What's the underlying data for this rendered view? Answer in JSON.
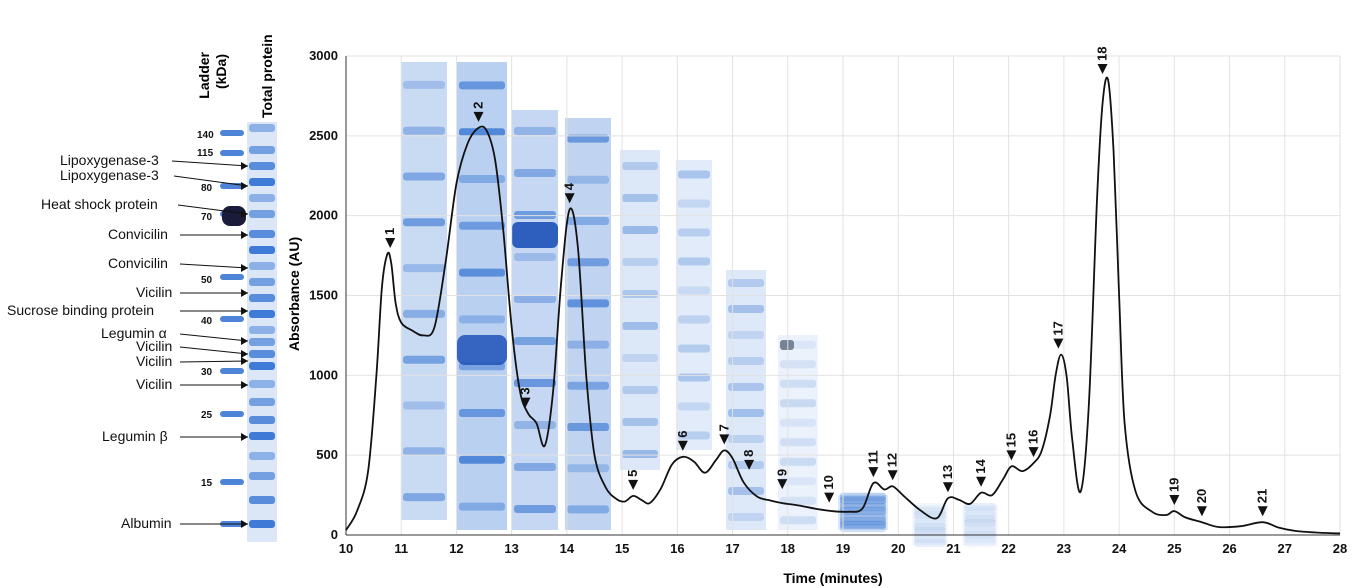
{
  "gel": {
    "ladder_header_line1": "Ladder",
    "ladder_header_line2": "(kDa)",
    "total_header": "Total protein",
    "ladder_marks": [
      "140",
      "115",
      "80",
      "70",
      "50",
      "40",
      "30",
      "25",
      "15"
    ],
    "protein_labels": [
      "Lipoxygenase-3",
      "Lipoxygenase-3",
      "Heat shock protein",
      "Convicilin",
      "Convicilin",
      "Vicilin",
      "Sucrose binding protein",
      "Legumin α",
      "Vicilin",
      "Vicilin",
      "Vicilin",
      "Legumin β",
      "Albumin"
    ],
    "band_color": "#2e6fd1"
  },
  "chart_data": {
    "type": "line",
    "xlabel": "Time (minutes)",
    "ylabel": "Absorbance (AU)",
    "xlim": [
      10,
      28
    ],
    "ylim": [
      0,
      3000
    ],
    "x_ticks": [
      "10",
      "11",
      "12",
      "13",
      "14",
      "15",
      "16",
      "17",
      "18",
      "19",
      "20",
      "21",
      "22",
      "23",
      "24",
      "25",
      "26",
      "27",
      "28"
    ],
    "y_ticks": [
      "0",
      "500",
      "1000",
      "1500",
      "2000",
      "2500",
      "3000"
    ],
    "grid": true,
    "series": [
      {
        "x": [
          10.0,
          10.2,
          10.4,
          10.55,
          10.65,
          10.75,
          10.82,
          10.9,
          11.0,
          11.2,
          11.4,
          11.6,
          11.8,
          12.0,
          12.2,
          12.4,
          12.55,
          12.7,
          12.85,
          13.0,
          13.15,
          13.3,
          13.45,
          13.6,
          13.75,
          13.9,
          14.05,
          14.2,
          14.35,
          14.5,
          14.7,
          14.9,
          15.05,
          15.2,
          15.35,
          15.5,
          15.7,
          15.9,
          16.1,
          16.3,
          16.5,
          16.7,
          16.85,
          17.0,
          17.2,
          17.45,
          17.7,
          17.9,
          18.2,
          18.5,
          18.8,
          19.1,
          19.35,
          19.55,
          19.75,
          19.9,
          20.1,
          20.4,
          20.7,
          20.9,
          21.1,
          21.3,
          21.5,
          21.7,
          21.9,
          22.05,
          22.25,
          22.45,
          22.6,
          22.75,
          22.85,
          22.95,
          23.05,
          23.15,
          23.3,
          23.45,
          23.6,
          23.7,
          23.8,
          23.9,
          24.0,
          24.1,
          24.3,
          24.6,
          24.85,
          25.0,
          25.2,
          25.5,
          25.8,
          26.2,
          26.6,
          26.9,
          27.2,
          27.6,
          28.0
        ],
        "y": [
          30,
          150,
          400,
          1000,
          1550,
          1760,
          1700,
          1450,
          1330,
          1280,
          1250,
          1300,
          1700,
          2200,
          2450,
          2550,
          2530,
          2350,
          1900,
          1300,
          900,
          760,
          700,
          560,
          900,
          1600,
          2040,
          1800,
          1000,
          500,
          300,
          225,
          210,
          245,
          220,
          200,
          290,
          440,
          490,
          460,
          390,
          470,
          530,
          480,
          330,
          240,
          215,
          200,
          185,
          165,
          150,
          145,
          165,
          325,
          285,
          305,
          245,
          155,
          105,
          230,
          220,
          195,
          265,
          250,
          350,
          430,
          400,
          450,
          530,
          750,
          1000,
          1130,
          990,
          600,
          270,
          800,
          2100,
          2700,
          2850,
          2400,
          1500,
          700,
          270,
          145,
          125,
          150,
          110,
          80,
          50,
          55,
          80,
          45,
          25,
          15,
          10
        ]
      }
    ],
    "peaks": [
      {
        "label": "1",
        "x": 10.8,
        "y": 1760
      },
      {
        "label": "2",
        "x": 12.4,
        "y": 2550
      },
      {
        "label": "3",
        "x": 13.25,
        "y": 760
      },
      {
        "label": "4",
        "x": 14.05,
        "y": 2040
      },
      {
        "label": "5",
        "x": 15.2,
        "y": 245
      },
      {
        "label": "6",
        "x": 16.1,
        "y": 490
      },
      {
        "label": "7",
        "x": 16.85,
        "y": 530
      },
      {
        "label": "8",
        "x": 17.3,
        "y": 370
      },
      {
        "label": "9",
        "x": 17.9,
        "y": 250
      },
      {
        "label": "10",
        "x": 18.75,
        "y": 165
      },
      {
        "label": "11",
        "x": 19.55,
        "y": 325
      },
      {
        "label": "12",
        "x": 19.9,
        "y": 305
      },
      {
        "label": "13",
        "x": 20.9,
        "y": 230
      },
      {
        "label": "14",
        "x": 21.5,
        "y": 265
      },
      {
        "label": "15",
        "x": 22.05,
        "y": 430
      },
      {
        "label": "16",
        "x": 22.45,
        "y": 450
      },
      {
        "label": "17",
        "x": 22.9,
        "y": 1130
      },
      {
        "label": "18",
        "x": 23.7,
        "y": 2850
      },
      {
        "label": "19",
        "x": 25.0,
        "y": 150
      },
      {
        "label": "20",
        "x": 25.5,
        "y": 80
      },
      {
        "label": "21",
        "x": 26.6,
        "y": 80
      }
    ]
  }
}
